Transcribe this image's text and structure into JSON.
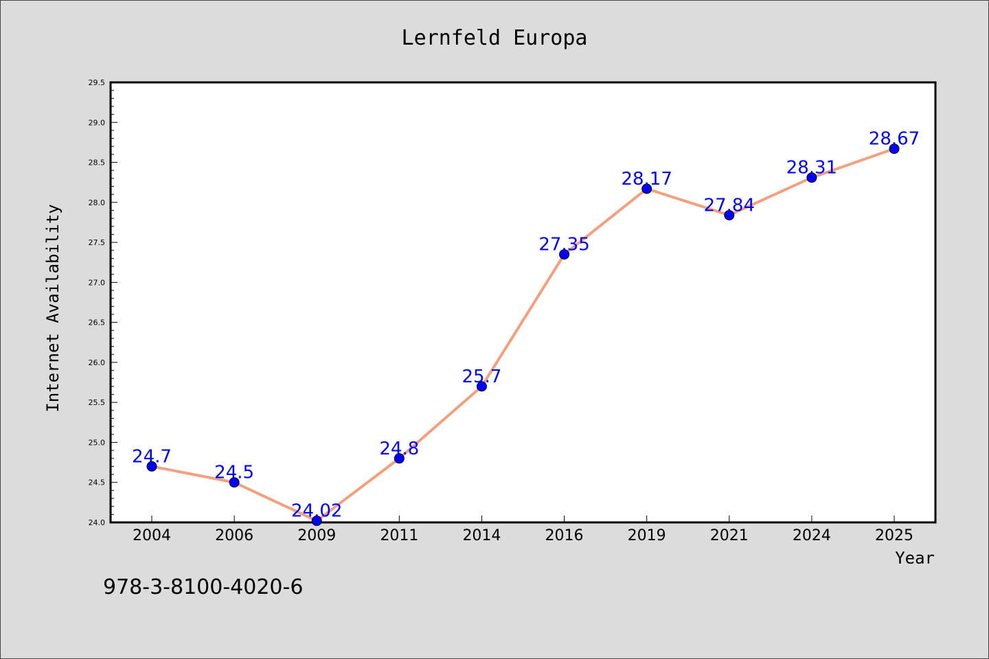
{
  "chart_data": {
    "type": "line",
    "title": "Lernfeld Europa",
    "xlabel": "Year",
    "ylabel": "Internet Availability",
    "categories": [
      "2004",
      "2006",
      "2009",
      "2011",
      "2014",
      "2016",
      "2019",
      "2021",
      "2024",
      "2025"
    ],
    "series": [
      {
        "values": [
          24.7,
          24.5,
          24.02,
          24.8,
          25.7,
          27.35,
          28.17,
          27.84,
          28.31,
          28.67
        ],
        "labels": [
          "24.7",
          "24.5",
          "24.02",
          "24.8",
          "25.7",
          "27.35",
          "28.17",
          "27.84",
          "28.31",
          "28.67"
        ],
        "line_color": "#f4a07f",
        "marker_color": "#0000ff"
      }
    ],
    "ylim": [
      24.0,
      29.5
    ],
    "yticks": [
      "24.0",
      "24.5",
      "25.0",
      "25.5",
      "26.0",
      "26.5",
      "27.0",
      "27.5",
      "28.0",
      "28.5",
      "29.0",
      "29.5"
    ],
    "grid": false,
    "legend": "none"
  },
  "footer": {
    "isbn": "978-3-8100-4020-6"
  }
}
